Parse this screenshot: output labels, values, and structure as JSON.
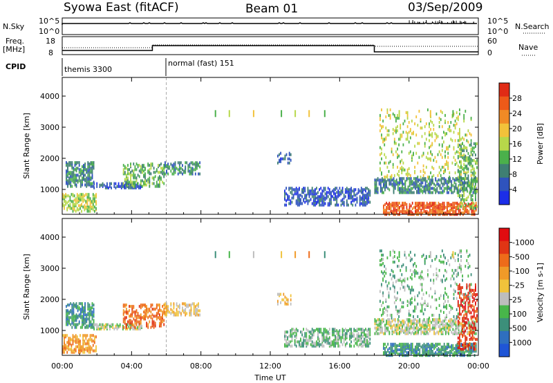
{
  "header": {
    "title": "Syowa East (fitACF)",
    "beam": "Beam 01",
    "date": "03/Sep/2009"
  },
  "panels": {
    "nsky": {
      "label": "N.Sky",
      "ticks": [
        "10^5",
        "10^0"
      ],
      "right_label": "N.Search",
      "right_ticks": [
        "10^5",
        "10^0"
      ]
    },
    "freq": {
      "label": "Freq.",
      "unit": "[MHz]",
      "ticks": [
        "18",
        "8"
      ],
      "right_label": "Nave",
      "right_ticks": [
        "60",
        "0"
      ]
    },
    "cpid": {
      "label": "CPID",
      "programs": [
        "themis 3300",
        "normal (fast) 151"
      ]
    }
  },
  "colors": {
    "power": [
      "#1c2ee8",
      "#2f53bd",
      "#3f7f73",
      "#4bb04b",
      "#b7d84a",
      "#f2c23a",
      "#f08a25",
      "#ee5a19",
      "#e02b15"
    ],
    "velocity": [
      "#1f55d6",
      "#2f6fbf",
      "#3c8f7a",
      "#48b64a",
      "#bdbdbd",
      "#f0c33b",
      "#f09a28",
      "#ee6b1a",
      "#e03515",
      "#e00c10"
    ]
  },
  "chart_data": [
    {
      "type": "heatmap",
      "title": "Power",
      "xlabel": "Time UT",
      "ylabel": "Slant Range [km]",
      "x_ticks": [
        "00:00",
        "04:00",
        "08:00",
        "12:00",
        "16:00",
        "20:00",
        "00:00"
      ],
      "y_ticks": [
        "1000",
        "2000",
        "3000",
        "4000"
      ],
      "ylim": [
        200,
        4600
      ],
      "colorbar": {
        "label": "Power [dB]",
        "ticks": [
          "4",
          "8",
          "12",
          "16",
          "20",
          "24",
          "28"
        ]
      },
      "regions": [
        {
          "t": [
            0.2,
            1.9
          ],
          "r": [
            1100,
            1900
          ],
          "lvl": 2,
          "d": 0.5
        },
        {
          "t": [
            0.0,
            2.0
          ],
          "r": [
            300,
            900
          ],
          "lvl": 4,
          "d": 0.45
        },
        {
          "t": [
            1.8,
            4.6
          ],
          "r": [
            1050,
            1250
          ],
          "lvl": 1,
          "d": 0.55
        },
        {
          "t": [
            3.5,
            5.9
          ],
          "r": [
            1100,
            1850
          ],
          "lvl": 3,
          "d": 0.35
        },
        {
          "t": [
            5.9,
            8.0
          ],
          "r": [
            1500,
            1900
          ],
          "lvl": 2,
          "d": 0.45
        },
        {
          "t": [
            12.4,
            13.2
          ],
          "r": [
            1850,
            2200
          ],
          "lvl": 1,
          "d": 0.3
        },
        {
          "t": [
            12.8,
            17.8
          ],
          "r": [
            500,
            1100
          ],
          "lvl": 1,
          "d": 0.45
        },
        {
          "t": [
            18.0,
            23.9
          ],
          "r": [
            900,
            1400
          ],
          "lvl": 2,
          "d": 0.5
        },
        {
          "t": [
            18.5,
            23.9
          ],
          "r": [
            200,
            600
          ],
          "lvl": 7,
          "d": 0.6
        },
        {
          "t": [
            18.3,
            23.6
          ],
          "r": [
            1400,
            3600
          ],
          "lvl": 4,
          "d": 0.12
        },
        {
          "t": [
            22.8,
            24.0
          ],
          "r": [
            400,
            2500
          ],
          "lvl": 3,
          "d": 0.3
        }
      ]
    },
    {
      "type": "heatmap",
      "title": "Velocity",
      "xlabel": "Time UT",
      "ylabel": "Slant Range [km]",
      "x_ticks": [
        "00:00",
        "04:00",
        "08:00",
        "12:00",
        "16:00",
        "20:00",
        "00:00"
      ],
      "y_ticks": [
        "1000",
        "2000",
        "3000",
        "4000"
      ],
      "ylim": [
        200,
        4600
      ],
      "colorbar": {
        "label": "Velocity [m s-1]",
        "ticks": [
          "1000",
          "500",
          "100",
          "25",
          "-25",
          "-100",
          "-500",
          "-1000"
        ]
      },
      "regions": [
        {
          "t": [
            0.2,
            1.9
          ],
          "r": [
            1100,
            1900
          ],
          "lvl": 2,
          "d": 0.5
        },
        {
          "t": [
            0.0,
            2.0
          ],
          "r": [
            300,
            900
          ],
          "lvl": 6,
          "d": 0.45
        },
        {
          "t": [
            1.8,
            4.6
          ],
          "r": [
            1050,
            1250
          ],
          "lvl": 4,
          "d": 0.55
        },
        {
          "t": [
            3.5,
            5.9
          ],
          "r": [
            1100,
            1850
          ],
          "lvl": 7,
          "d": 0.35
        },
        {
          "t": [
            5.9,
            8.0
          ],
          "r": [
            1500,
            1900
          ],
          "lvl": 5,
          "d": 0.45
        },
        {
          "t": [
            12.4,
            13.2
          ],
          "r": [
            1850,
            2200
          ],
          "lvl": 5,
          "d": 0.3
        },
        {
          "t": [
            12.8,
            17.8
          ],
          "r": [
            500,
            1100
          ],
          "lvl": 3,
          "d": 0.45
        },
        {
          "t": [
            18.0,
            23.9
          ],
          "r": [
            900,
            1400
          ],
          "lvl": 4,
          "d": 0.5
        },
        {
          "t": [
            18.5,
            23.9
          ],
          "r": [
            200,
            600
          ],
          "lvl": 2,
          "d": 0.6
        },
        {
          "t": [
            18.3,
            23.6
          ],
          "r": [
            1400,
            3600
          ],
          "lvl": 3,
          "d": 0.12
        },
        {
          "t": [
            22.8,
            24.0
          ],
          "r": [
            400,
            2500
          ],
          "lvl": 8,
          "d": 0.3
        }
      ]
    }
  ]
}
